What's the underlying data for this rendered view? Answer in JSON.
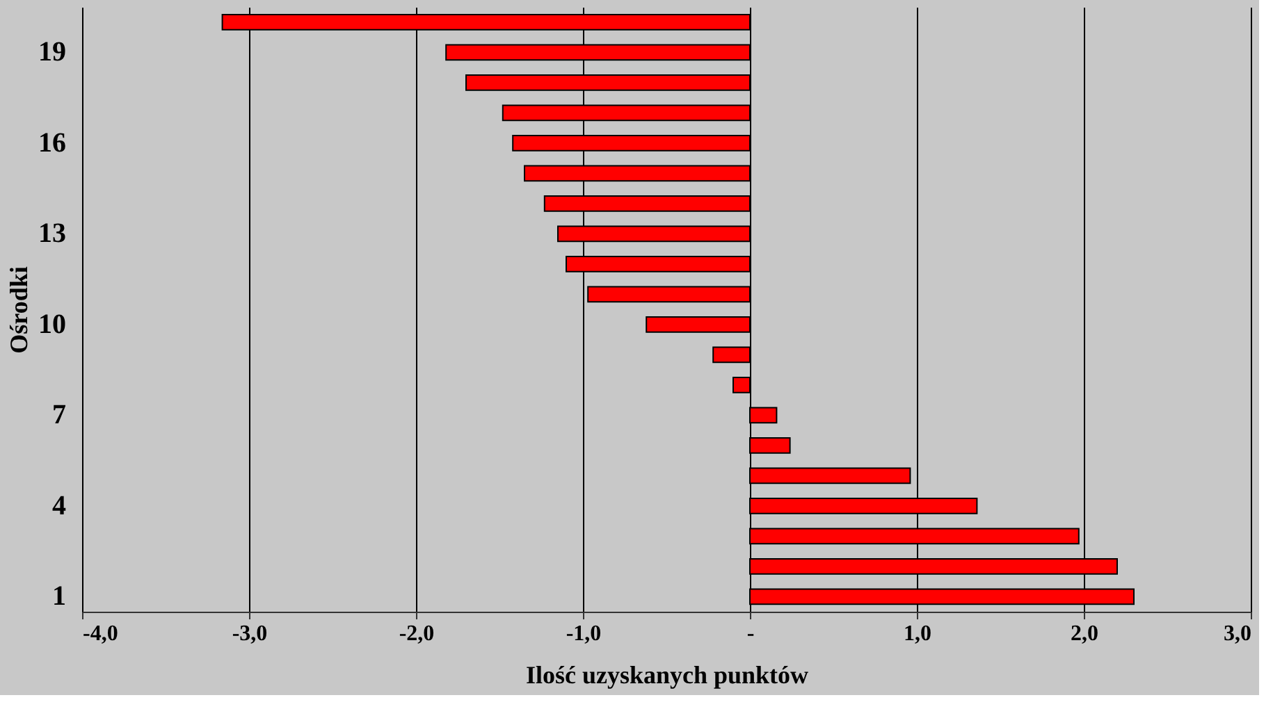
{
  "chart_data": {
    "type": "bar",
    "orientation": "horizontal",
    "xlabel": "Ilość uzyskanych punktów",
    "ylabel": "Ośrodki",
    "categories": [
      null,
      "19",
      null,
      null,
      "16",
      null,
      null,
      "13",
      null,
      null,
      "10",
      null,
      null,
      "7",
      null,
      null,
      "4",
      null,
      null,
      "1"
    ],
    "values": [
      -3.16,
      -1.82,
      -1.7,
      -1.48,
      -1.42,
      -1.35,
      -1.23,
      -1.15,
      -1.1,
      -0.97,
      -0.62,
      -0.22,
      -0.1,
      0.16,
      0.24,
      0.96,
      1.36,
      1.97,
      2.2,
      2.3
    ],
    "color": "#ff0000",
    "xlim": [
      -4,
      3
    ],
    "xticks": [
      {
        "value": -4,
        "label": "-4,0"
      },
      {
        "value": -3,
        "label": "-3,0"
      },
      {
        "value": -2,
        "label": "-2,0"
      },
      {
        "value": -1,
        "label": "-1,0"
      },
      {
        "value": 0,
        "label": "-"
      },
      {
        "value": 1,
        "label": "1,0"
      },
      {
        "value": 2,
        "label": "2,0"
      },
      {
        "value": 3,
        "label": "3,0"
      }
    ],
    "grid": "x"
  }
}
